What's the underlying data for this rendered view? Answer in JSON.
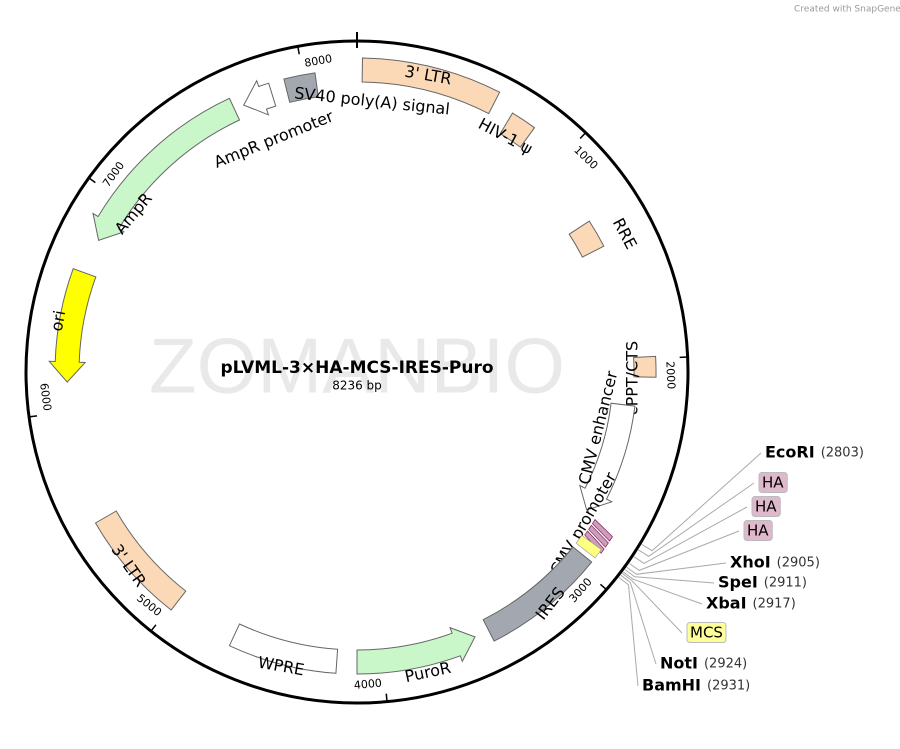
{
  "credit": "Created with SnapGene®",
  "watermark": "ZOMANBIO",
  "title": "pLVML-3×HA-MCS-IRES-Puro",
  "length": "8236 bp",
  "ticks": [
    "1000",
    "2000",
    "3000",
    "4000",
    "5000",
    "6000",
    "7000",
    "8000"
  ],
  "features": [
    {
      "label": "3' LTR"
    },
    {
      "label": "HIV-1 ψ"
    },
    {
      "label": "RRE"
    },
    {
      "label": "cPPT/CTS"
    },
    {
      "label": "CMV enhancer"
    },
    {
      "label": "CMV promoter"
    },
    {
      "label": "IRES"
    },
    {
      "label": "PuroR"
    },
    {
      "label": "WPRE"
    },
    {
      "label": "3' LTR"
    },
    {
      "label": "ori"
    },
    {
      "label": "AmpR"
    },
    {
      "label": "AmpR promoter"
    },
    {
      "label": "SV40 poly(A) signal"
    }
  ],
  "sites": [
    {
      "name": "EcoRI",
      "position": "(2803)"
    },
    {
      "name": "HA"
    },
    {
      "name": "HA"
    },
    {
      "name": "HA"
    },
    {
      "name": "XhoI",
      "position": "(2905)"
    },
    {
      "name": "SpeI",
      "position": "(2911)"
    },
    {
      "name": "XbaI",
      "position": "(2917)"
    },
    {
      "name": "MCS"
    },
    {
      "name": "NotI",
      "position": "(2924)"
    },
    {
      "name": "BamHI",
      "position": "(2931)"
    }
  ]
}
